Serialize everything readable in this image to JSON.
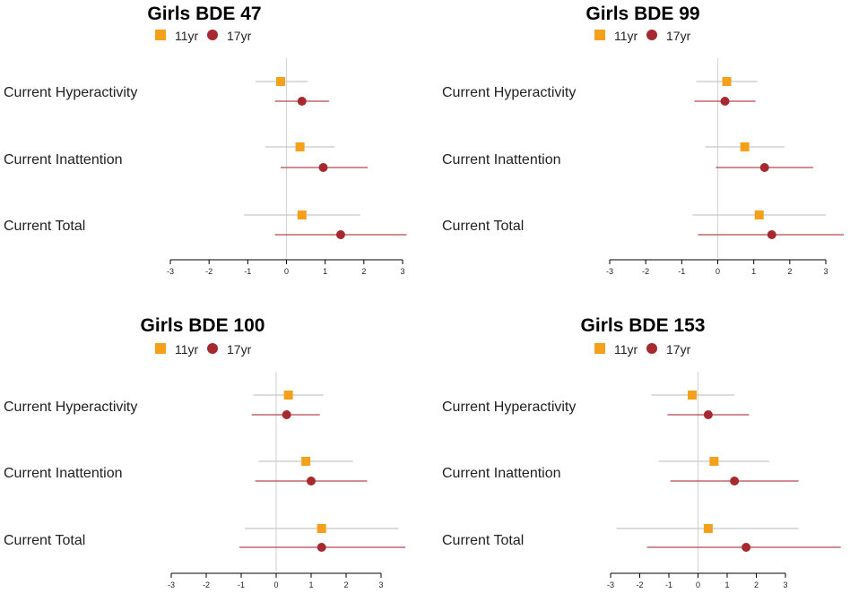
{
  "colors": {
    "series_11yr": "#f5a01a",
    "series_17yr": "#a5292f",
    "ci_11yr": "#c8c8c8",
    "ci_17yr": "#b5474a",
    "zero_line": "#d6d6d6",
    "axis": "#000000"
  },
  "chart_data": [
    {
      "type": "forest",
      "title": "Girls BDE 47",
      "legend": [
        "11yr",
        "17yr"
      ],
      "categories": [
        "Current Hyperactivity",
        "Current Inattention",
        "Current Total"
      ],
      "xlim": [
        -3,
        3
      ],
      "xticks": [
        -3,
        -2,
        -1,
        0,
        1,
        2,
        3
      ],
      "series": [
        {
          "name": "11yr",
          "marker": "square",
          "estimates": [
            -0.15,
            0.35,
            0.4
          ],
          "ci_low": [
            -0.8,
            -0.55,
            -1.1
          ],
          "ci_high": [
            0.55,
            1.25,
            1.9
          ]
        },
        {
          "name": "17yr",
          "marker": "circle",
          "estimates": [
            0.4,
            0.95,
            1.4
          ],
          "ci_low": [
            -0.3,
            -0.15,
            -0.3
          ],
          "ci_high": [
            1.1,
            2.1,
            3.1
          ]
        }
      ]
    },
    {
      "type": "forest",
      "title": "Girls BDE 99",
      "legend": [
        "11yr",
        "17yr"
      ],
      "categories": [
        "Current Hyperactivity",
        "Current Inattention",
        "Current Total"
      ],
      "xlim": [
        -3,
        3
      ],
      "xticks": [
        -3,
        -2,
        -1,
        0,
        1,
        2,
        3
      ],
      "series": [
        {
          "name": "11yr",
          "marker": "square",
          "estimates": [
            0.25,
            0.75,
            1.15
          ],
          "ci_low": [
            -0.6,
            -0.35,
            -0.7
          ],
          "ci_high": [
            1.1,
            1.85,
            3.0
          ]
        },
        {
          "name": "17yr",
          "marker": "circle",
          "estimates": [
            0.2,
            1.3,
            1.5
          ],
          "ci_low": [
            -0.65,
            -0.05,
            -0.55
          ],
          "ci_high": [
            1.05,
            2.65,
            3.5
          ]
        }
      ]
    },
    {
      "type": "forest",
      "title": "Girls BDE 100",
      "legend": [
        "11yr",
        "17yr"
      ],
      "categories": [
        "Current Hyperactivity",
        "Current Inattention",
        "Current Total"
      ],
      "xlim": [
        -3,
        3
      ],
      "xticks": [
        -3,
        -2,
        -1,
        0,
        1,
        2,
        3
      ],
      "series": [
        {
          "name": "11yr",
          "marker": "square",
          "estimates": [
            0.35,
            0.85,
            1.3
          ],
          "ci_low": [
            -0.65,
            -0.5,
            -0.9
          ],
          "ci_high": [
            1.35,
            2.2,
            3.5
          ]
        },
        {
          "name": "17yr",
          "marker": "circle",
          "estimates": [
            0.3,
            1.0,
            1.3
          ],
          "ci_low": [
            -0.7,
            -0.6,
            -1.05
          ],
          "ci_high": [
            1.25,
            2.6,
            3.7
          ]
        }
      ]
    },
    {
      "type": "forest",
      "title": "Girls BDE 153",
      "legend": [
        "11yr",
        "17yr"
      ],
      "categories": [
        "Current Hyperactivity",
        "Current Inattention",
        "Current Total"
      ],
      "xlim": [
        -3,
        3
      ],
      "xticks": [
        -3,
        -2,
        -1,
        0,
        1,
        2,
        3
      ],
      "series": [
        {
          "name": "11yr",
          "marker": "square",
          "estimates": [
            -0.2,
            0.55,
            0.35
          ],
          "ci_low": [
            -1.6,
            -1.35,
            -2.8
          ],
          "ci_high": [
            1.25,
            2.45,
            3.45
          ]
        },
        {
          "name": "17yr",
          "marker": "circle",
          "estimates": [
            0.35,
            1.25,
            1.65
          ],
          "ci_low": [
            -1.05,
            -0.95,
            -1.75
          ],
          "ci_high": [
            1.75,
            3.45,
            4.9
          ]
        }
      ]
    }
  ]
}
